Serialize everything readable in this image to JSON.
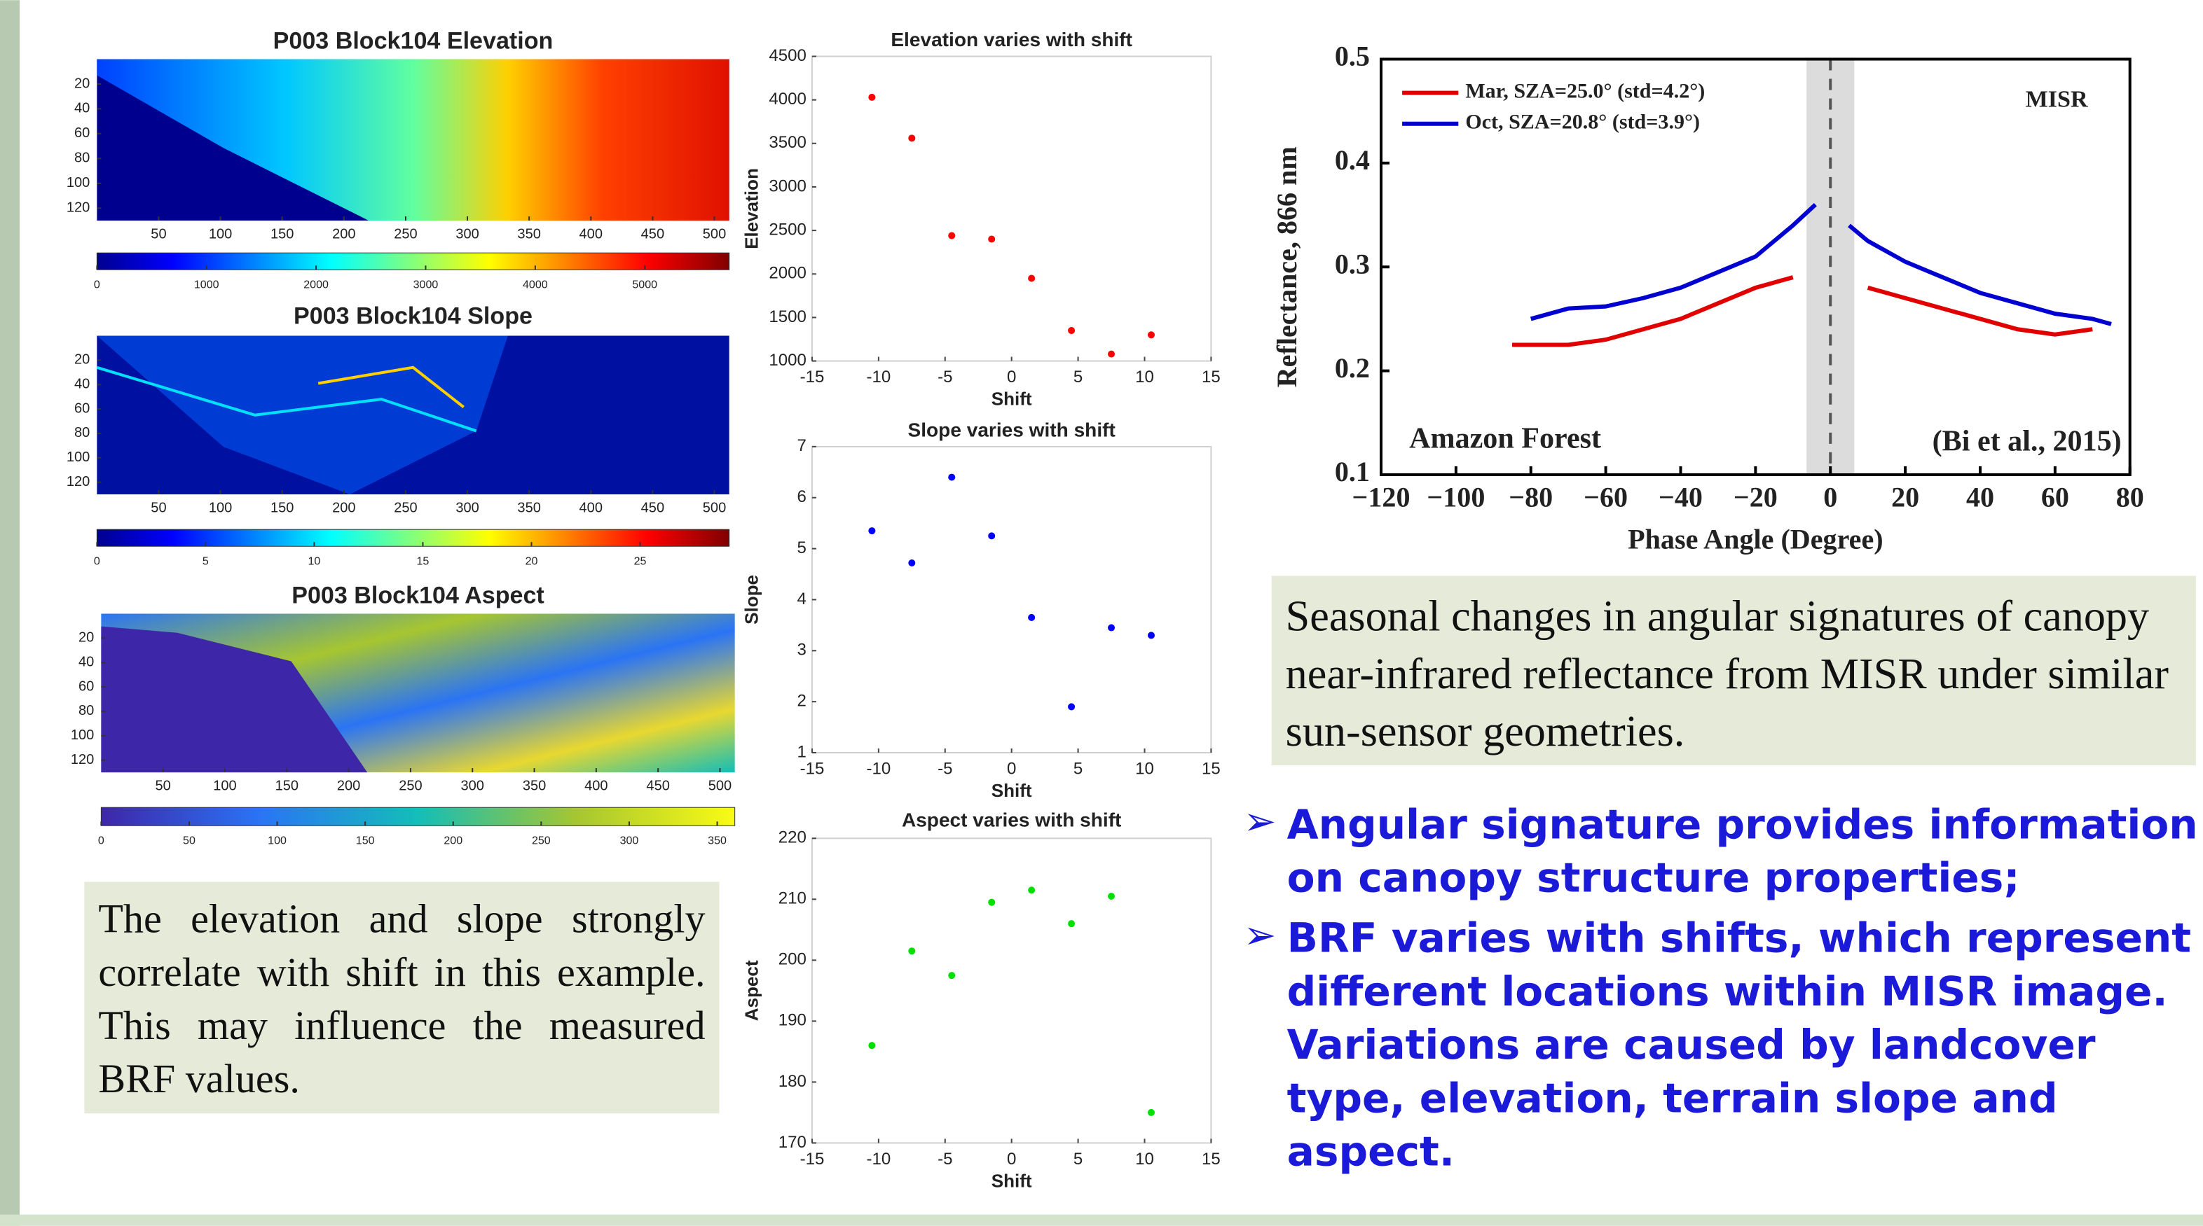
{
  "chart_data": [
    {
      "type": "heatmap",
      "title": "P003 Block104 Elevation",
      "xlim": [
        0,
        512
      ],
      "ylim": [
        0,
        130
      ],
      "xticks": [
        50,
        100,
        150,
        200,
        250,
        300,
        350,
        400,
        450,
        500
      ],
      "yticks": [
        20,
        40,
        60,
        80,
        100,
        120
      ],
      "colormap": "jet",
      "colorbar_lim": [
        0,
        5770
      ],
      "colorbar_ticks": [
        0,
        1000,
        2000,
        3000,
        4000,
        5000
      ]
    },
    {
      "type": "heatmap",
      "title": "P003 Block104 Slope",
      "xlim": [
        0,
        512
      ],
      "ylim": [
        0,
        130
      ],
      "xticks": [
        50,
        100,
        150,
        200,
        250,
        300,
        350,
        400,
        450,
        500
      ],
      "yticks": [
        20,
        40,
        60,
        80,
        100,
        120
      ],
      "colormap": "jet",
      "colorbar_lim": [
        0,
        29.1
      ],
      "colorbar_ticks": [
        0,
        5,
        10,
        15,
        20,
        25
      ]
    },
    {
      "type": "heatmap",
      "title": "P003 Block104 Aspect",
      "xlim": [
        0,
        512
      ],
      "ylim": [
        0,
        130
      ],
      "xticks": [
        50,
        100,
        150,
        200,
        250,
        300,
        350,
        400,
        450,
        500
      ],
      "yticks": [
        20,
        40,
        60,
        80,
        100,
        120
      ],
      "colormap": "parula",
      "colorbar_lim": [
        0,
        360
      ],
      "colorbar_ticks": [
        0,
        50,
        100,
        150,
        200,
        250,
        300,
        350
      ]
    },
    {
      "type": "scatter",
      "title": "Elevation varies with shift",
      "x_label": "Shift",
      "y_label": "Elevation",
      "x": [
        -10.5,
        -7.5,
        -4.5,
        -1.5,
        1.5,
        4.5,
        7.5,
        10.5
      ],
      "values": [
        4030,
        3560,
        2440,
        2400,
        1950,
        1350,
        1080,
        1300
      ],
      "color": "#ff0000",
      "xlim": [
        -15,
        15
      ],
      "xticks": [
        -15,
        -10,
        -5,
        0,
        5,
        10,
        15
      ],
      "ylim": [
        1000,
        4500
      ],
      "yticks": [
        1000,
        1500,
        2000,
        2500,
        3000,
        3500,
        4000,
        4500
      ]
    },
    {
      "type": "scatter",
      "title": "Slope varies with shift",
      "x_label": "Shift",
      "y_label": "Slope",
      "x": [
        -10.5,
        -7.5,
        -4.5,
        -1.5,
        1.5,
        4.5,
        7.5,
        10.5
      ],
      "values": [
        5.35,
        4.72,
        6.4,
        5.25,
        3.65,
        1.9,
        3.45,
        3.3
      ],
      "color": "#0000ff",
      "xlim": [
        -15,
        15
      ],
      "xticks": [
        -15,
        -10,
        -5,
        0,
        5,
        10,
        15
      ],
      "ylim": [
        1,
        7
      ],
      "yticks": [
        1,
        2,
        3,
        4,
        5,
        6,
        7
      ]
    },
    {
      "type": "scatter",
      "title": "Aspect varies with shift",
      "x_label": "Shift",
      "y_label": "Aspect",
      "x": [
        -10.5,
        -7.5,
        -4.5,
        -1.5,
        1.5,
        4.5,
        7.5,
        10.5
      ],
      "values": [
        186,
        201.5,
        197.5,
        209.5,
        211.5,
        206,
        210.5,
        175
      ],
      "color": "#00e000",
      "xlim": [
        -15,
        15
      ],
      "xticks": [
        -15,
        -10,
        -5,
        0,
        5,
        10,
        15
      ],
      "ylim": [
        170,
        220
      ],
      "yticks": [
        170,
        180,
        190,
        200,
        210,
        220
      ]
    },
    {
      "type": "line",
      "x_label": "Phase Angle (Degree)",
      "y_label": "Reflectance, 866 nm",
      "x": [
        -85,
        -80,
        -70,
        -60,
        -50,
        -40,
        -30,
        -20,
        -10,
        -4,
        0,
        5,
        10,
        20,
        30,
        40,
        50,
        60,
        70,
        75
      ],
      "series": [
        {
          "name": "Mar, SZA=25.0° (std=4.2°)",
          "color": "#e00000",
          "values": [
            0.225,
            0.225,
            0.225,
            0.23,
            0.24,
            0.25,
            0.265,
            0.28,
            0.29,
            null,
            null,
            null,
            0.28,
            0.27,
            0.26,
            0.25,
            0.24,
            0.235,
            0.24,
            null
          ]
        },
        {
          "name": "Oct, SZA=20.8° (std=3.9°)",
          "color": "#0000d0",
          "values": [
            null,
            0.25,
            0.26,
            0.262,
            0.27,
            0.28,
            0.295,
            0.31,
            0.34,
            0.36,
            null,
            0.34,
            0.325,
            0.305,
            0.29,
            0.275,
            0.265,
            0.255,
            0.25,
            0.245
          ]
        }
      ],
      "annotations": [
        "MISR",
        "Amazon Forest",
        "(Bi et al., 2015)"
      ],
      "xlim": [
        -120,
        80
      ],
      "xticks": [
        {
          "value": -120,
          "label": "−120"
        },
        {
          "value": -100,
          "label": "−100"
        },
        {
          "value": -80,
          "label": "−80"
        },
        {
          "value": -60,
          "label": "−60"
        },
        {
          "value": -40,
          "label": "−40"
        },
        {
          "value": -20,
          "label": "−20"
        },
        0,
        20,
        40,
        60,
        80
      ],
      "ylim": [
        0.1,
        0.5
      ],
      "yticks": [
        0.1,
        0.2,
        0.3,
        0.4,
        0.5
      ],
      "legend": "upper left"
    }
  ],
  "captions": [
    "The elevation and slope strongly correlate with shift in this example. This may influence the measured BRF values.",
    "Seasonal changes in angular signatures of canopy near-infrared reflectance from MISR under similar sun-sensor geometries."
  ],
  "bullets": [
    "Angular signature provides information on canopy structure properties;",
    "BRF varies with shifts, which represent different locations within MISR image. Variations are caused by landcover type, elevation, terrain slope and aspect."
  ]
}
